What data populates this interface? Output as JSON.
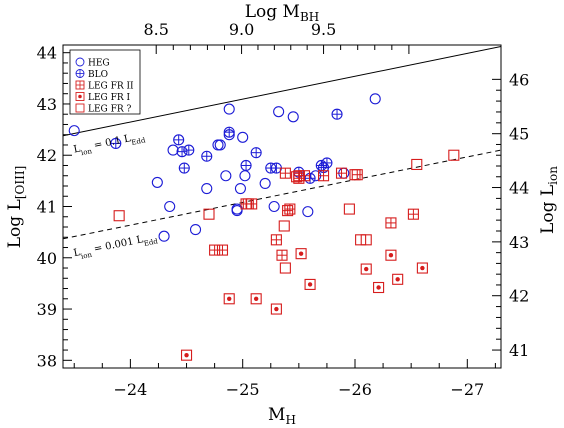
{
  "chart_data": {
    "type": "scatter",
    "axes": {
      "bottom": {
        "label_main": "M",
        "label_sub": "H",
        "range": [
          -23.4,
          -27.3
        ],
        "ticks": [
          -24,
          -25,
          -26,
          -27
        ],
        "tick_labels": [
          "−24",
          "−25",
          "−26",
          "−27"
        ]
      },
      "left": {
        "label_main": "Log  L",
        "label_sub": "[OIII]",
        "range": [
          37.85,
          44.15
        ],
        "ticks": [
          38,
          39,
          40,
          41,
          42,
          43,
          44
        ],
        "tick_labels": [
          "38",
          "39",
          "40",
          "41",
          "42",
          "43",
          "44"
        ]
      },
      "top": {
        "label_main": "Log  M",
        "label_sub": "BH",
        "tick_values_bottom_axis": [
          -24.23,
          -24.99,
          -25.72,
          -26.48
        ],
        "tick_labels": [
          "8.5",
          "9.0",
          "9.5",
          ""
        ]
      },
      "right": {
        "label_main": "Log  L",
        "label_sub": "ion",
        "tick_values_left_axis": [
          38.2,
          39.26,
          40.31,
          41.37,
          42.42,
          43.48
        ],
        "tick_labels": [
          "41",
          "42",
          "43",
          "44",
          "45",
          "46"
        ]
      }
    },
    "lines": [
      {
        "name": "L_ion = 0.1 L_Edd",
        "style": "solid",
        "x": [
          -23.4,
          -27.3
        ],
        "y": [
          42.38,
          44.12
        ]
      },
      {
        "name": "L_ion = 0.001 L_Edd",
        "style": "dashed",
        "x": [
          -23.4,
          -27.3
        ],
        "y": [
          40.37,
          42.1
        ]
      }
    ],
    "line_annotations": [
      {
        "main": "L",
        "sub": "ion",
        "rest": " = 0.1 L",
        "sub2": "Edd",
        "x": -23.5,
        "y": 42.05
      },
      {
        "main": "L",
        "sub": "ion",
        "rest": " = 0.001 L",
        "sub2": "Edd",
        "x": -23.5,
        "y": 40.03
      }
    ],
    "legend": {
      "position": "top-left",
      "entries": [
        {
          "label": "HEG",
          "marker": "circle"
        },
        {
          "label": "BLO",
          "marker": "circle-cross"
        },
        {
          "label": "LEG FR II",
          "marker": "square-cross"
        },
        {
          "label": "LEG FR I",
          "marker": "square-dot"
        },
        {
          "label": "LEG FR ?",
          "marker": "square"
        }
      ]
    },
    "series": [
      {
        "name": "HEG",
        "marker": "circle",
        "color": "#1c1cd6",
        "points": [
          [
            -23.5,
            42.48
          ],
          [
            -24.35,
            41.0
          ],
          [
            -24.38,
            42.1
          ],
          [
            -24.58,
            40.55
          ],
          [
            -24.78,
            42.2
          ],
          [
            -24.8,
            42.2
          ],
          [
            -24.88,
            42.9
          ],
          [
            -24.88,
            42.4
          ],
          [
            -24.85,
            41.6
          ],
          [
            -24.95,
            40.95
          ],
          [
            -24.98,
            41.35
          ],
          [
            -25.02,
            41.6
          ],
          [
            -25.0,
            42.35
          ],
          [
            -25.28,
            41.0
          ],
          [
            -25.32,
            42.85
          ],
          [
            -25.45,
            42.75
          ],
          [
            -25.58,
            40.9
          ],
          [
            -25.65,
            41.6
          ],
          [
            -25.9,
            41.65
          ],
          [
            -26.18,
            43.1
          ],
          [
            -24.3,
            40.42
          ],
          [
            -24.95,
            40.92
          ],
          [
            -25.2,
            41.45
          ],
          [
            -24.24,
            41.47
          ],
          [
            -24.68,
            41.35
          ]
        ]
      },
      {
        "name": "BLO",
        "marker": "circle-cross",
        "color": "#1c1cd6",
        "points": [
          [
            -23.87,
            42.23
          ],
          [
            -24.43,
            42.3
          ],
          [
            -24.46,
            42.07
          ],
          [
            -24.48,
            41.75
          ],
          [
            -24.52,
            42.1
          ],
          [
            -24.68,
            41.98
          ],
          [
            -24.88,
            42.45
          ],
          [
            -25.03,
            41.8
          ],
          [
            -25.12,
            42.05
          ],
          [
            -25.25,
            41.75
          ],
          [
            -25.3,
            41.75
          ],
          [
            -25.5,
            41.67
          ],
          [
            -25.6,
            41.55
          ],
          [
            -25.7,
            41.8
          ],
          [
            -25.72,
            41.76
          ],
          [
            -25.75,
            41.85
          ],
          [
            -25.84,
            42.8
          ]
        ]
      },
      {
        "name": "LEG FR II",
        "marker": "square-cross",
        "color": "#d61c1c",
        "points": [
          [
            -24.75,
            40.15
          ],
          [
            -24.82,
            40.15
          ],
          [
            -25.03,
            41.05
          ],
          [
            -25.08,
            41.05
          ],
          [
            -25.3,
            40.35
          ],
          [
            -25.35,
            40.05
          ],
          [
            -25.38,
            41.65
          ],
          [
            -25.4,
            40.92
          ],
          [
            -25.5,
            41.55
          ],
          [
            -25.55,
            41.6
          ],
          [
            -25.72,
            41.6
          ],
          [
            -25.88,
            41.65
          ],
          [
            -26.32,
            40.68
          ],
          [
            -26.52,
            40.85
          ],
          [
            -26.02,
            41.62
          ],
          [
            -25.5,
            41.6
          ],
          [
            -25.42,
            40.95
          ]
        ]
      },
      {
        "name": "LEG FR I",
        "marker": "square-dot",
        "color": "#d61c1c",
        "points": [
          [
            -24.5,
            38.1
          ],
          [
            -24.88,
            39.2
          ],
          [
            -25.12,
            39.2
          ],
          [
            -25.3,
            39.0
          ],
          [
            -25.52,
            40.08
          ],
          [
            -25.6,
            39.48
          ],
          [
            -26.1,
            39.78
          ],
          [
            -26.21,
            39.42
          ],
          [
            -26.32,
            40.05
          ],
          [
            -26.38,
            39.58
          ],
          [
            -26.6,
            39.8
          ]
        ]
      },
      {
        "name": "LEG FR ?",
        "marker": "square",
        "color": "#d61c1c",
        "points": [
          [
            -23.9,
            40.82
          ],
          [
            -24.7,
            40.85
          ],
          [
            -25.05,
            41.05
          ],
          [
            -25.37,
            40.62
          ],
          [
            -25.48,
            41.58
          ],
          [
            -25.38,
            39.8
          ],
          [
            -26.0,
            41.62
          ],
          [
            -25.95,
            40.95
          ],
          [
            -26.05,
            40.35
          ],
          [
            -26.55,
            41.82
          ],
          [
            -26.88,
            42.0
          ],
          [
            -26.1,
            40.35
          ]
        ]
      }
    ]
  }
}
